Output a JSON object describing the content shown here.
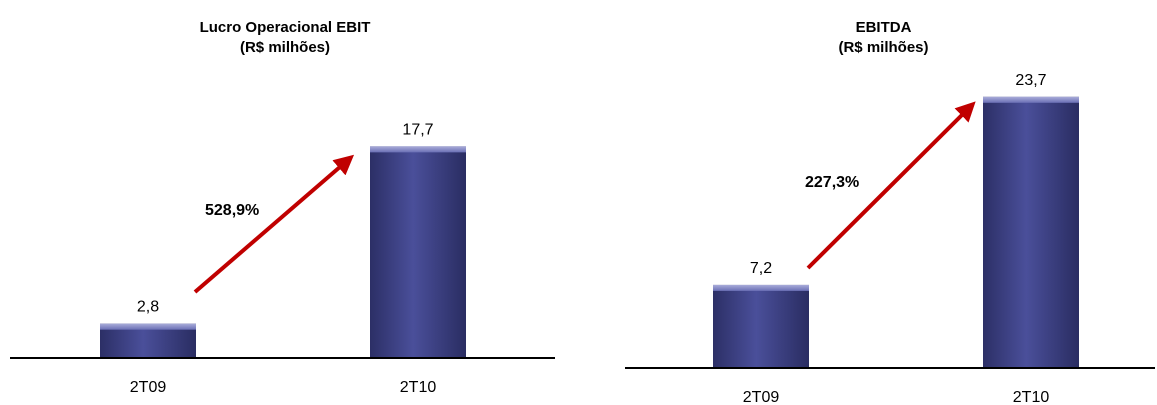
{
  "chart_data": [
    {
      "type": "bar",
      "title": "Lucro Operacional EBIT",
      "subtitle": "(R$ milhões)",
      "categories": [
        "2T09",
        "2T10"
      ],
      "values": [
        2.8,
        17.7
      ],
      "value_labels": [
        "2,8",
        "17,7"
      ],
      "growth_label": "528,9%",
      "bar_color": "#4a4f9a",
      "arrow_color": "#c00000",
      "ylim": [
        0,
        20
      ]
    },
    {
      "type": "bar",
      "title": "EBITDA",
      "subtitle": "(R$ milhões)",
      "categories": [
        "2T09",
        "2T10"
      ],
      "values": [
        7.2,
        23.7
      ],
      "value_labels": [
        "7,2",
        "23,7"
      ],
      "growth_label": "227,3%",
      "bar_color": "#4a4f9a",
      "arrow_color": "#c00000",
      "ylim": [
        0,
        25
      ]
    }
  ]
}
